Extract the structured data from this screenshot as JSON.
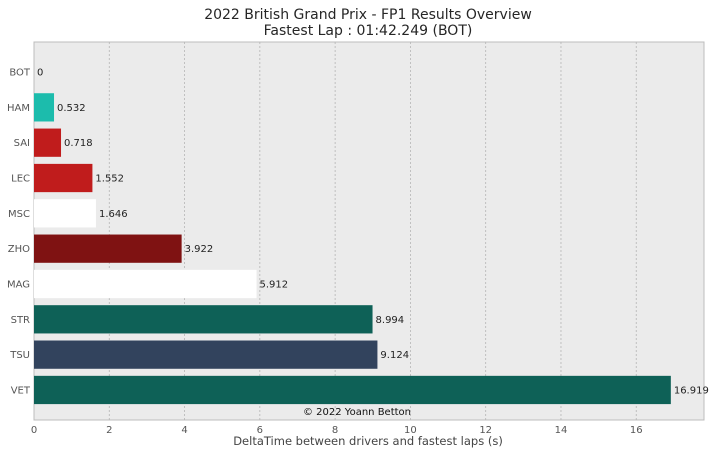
{
  "chart_data": {
    "type": "bar",
    "orientation": "horizontal",
    "title": "2022 British Grand Prix - FP1 Results Overview",
    "subtitle": "Fastest Lap : 01:42.249 (BOT)",
    "xlabel": "DeltaTime between drivers and fastest laps (s)",
    "ylabel": "",
    "xlim": [
      0,
      17.8
    ],
    "xticks": [
      0,
      2,
      4,
      6,
      8,
      10,
      12,
      14,
      16
    ],
    "grid": "vertical",
    "categories": [
      "BOT",
      "HAM",
      "SAI",
      "LEC",
      "MSC",
      "ZHO",
      "MAG",
      "STR",
      "TSU",
      "VET"
    ],
    "values": [
      0,
      0.532,
      0.718,
      1.552,
      1.646,
      3.922,
      5.912,
      8.994,
      9.124,
      16.919
    ],
    "value_labels": [
      "0",
      "0.532",
      "0.718",
      "1.552",
      "1.646",
      "3.922",
      "5.912",
      "8.994",
      "9.124",
      "16.919"
    ],
    "colors": [
      "#900000",
      "#1cbcac",
      "#c01c1c",
      "#c01c1c",
      "#ffffff",
      "#7f1212",
      "#ffffff",
      "#0e6157",
      "#32435d",
      "#0e6157"
    ],
    "annotation": "© 2022 Yoann Betton"
  }
}
